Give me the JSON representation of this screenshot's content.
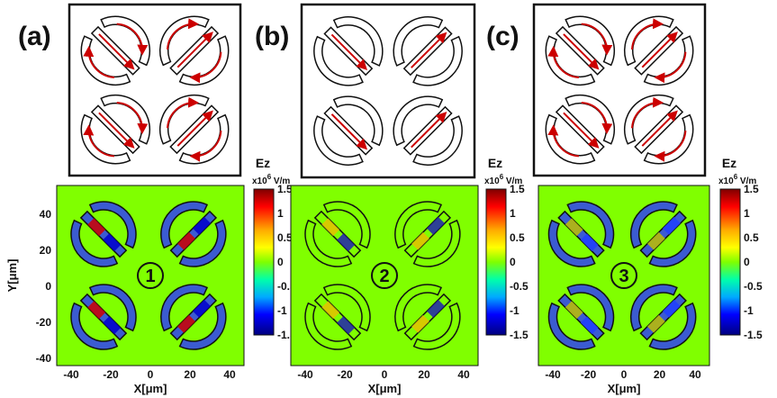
{
  "panels": [
    {
      "label": "(a)",
      "mode": "1",
      "arrows": true
    },
    {
      "label": "(b)",
      "mode": "2",
      "arrows": false
    },
    {
      "label": "(c)",
      "mode": "3",
      "arrows": true
    }
  ],
  "colorbar": {
    "title": "Ez",
    "unit_prefix": "x10",
    "unit_exp": "6",
    "unit_suffix": " V/m",
    "ticks": [
      "1.5",
      "1",
      "0.5",
      "0",
      "-0.5",
      "-1",
      "-1.5"
    ],
    "colors": {
      "top": "#8b0000",
      "mid": "#7fff00",
      "bottom": "#00007f"
    }
  },
  "axes": {
    "xlabel": "X[μm]",
    "ylabel": "Y[μm]",
    "xticks": [
      "-40",
      "-20",
      "0",
      "20",
      "40"
    ],
    "yticks": [
      "40",
      "20",
      "0",
      "-20",
      "-40"
    ]
  },
  "colors": {
    "field_bg": "#80ff00",
    "arrow": "#cc0000",
    "outline": "#111111"
  }
}
